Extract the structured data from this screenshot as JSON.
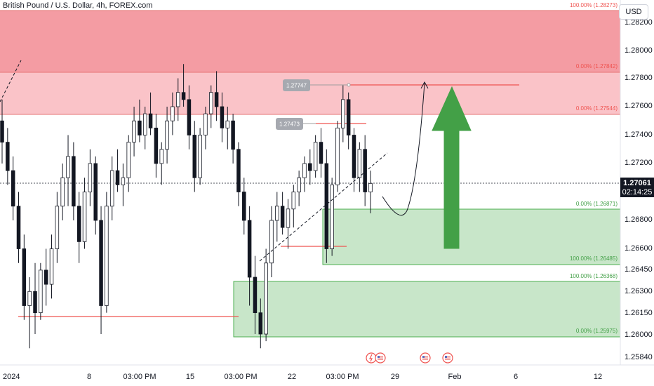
{
  "header": {
    "symbol_title": "British Pound / U.S. Dollar, 4h, FOREX.com",
    "currency": "USD"
  },
  "price_scale": {
    "labels": [
      "1.28200",
      "1.28000",
      "1.27800",
      "1.27600",
      "1.27400",
      "1.27200",
      "1.26800",
      "1.26600",
      "1.26450",
      "1.26300",
      "1.26150",
      "1.26000",
      "1.25840"
    ],
    "current_price": "1.27061",
    "countdown": "02:14:25"
  },
  "time_axis": {
    "labels": [
      "2024",
      "8",
      "03:00 PM",
      "15",
      "03:00 PM",
      "22",
      "03:00 PM",
      "29",
      "Feb",
      "6",
      "12"
    ]
  },
  "zones": {
    "supply_upper": {
      "top_label": "100.00% (1.28273)",
      "bottom_label": "0.00% (1.27842)",
      "top": 1.28273,
      "bottom": 1.27842
    },
    "supply_lower": {
      "bottom_label": "0.00% (1.27544)",
      "bottom": 1.27544
    },
    "demand_upper": {
      "top_label": "0.00% (1.26871)",
      "bottom_label": "100.00% (1.26485)",
      "top": 1.26871,
      "bottom": 1.26485
    },
    "demand_lower": {
      "top_label": "100.00% (1.26368)",
      "bottom_label": "0.00% (1.25975)",
      "top": 1.26368,
      "bottom": 1.25975
    }
  },
  "callouts": {
    "high": "1.27747",
    "mid": "1.27473"
  },
  "colors": {
    "bull": "#ffffff",
    "bear": "#131722",
    "supply_strong": "#f28b93",
    "supply_light": "#f9bcc2",
    "demand": "#c8e6c9",
    "demand_border": "#4caf50",
    "arrow": "#43a047",
    "price_tag": "#131722"
  },
  "icons": [
    "lightning-event-icon",
    "us-flag-event-icon",
    "us-flag-event-icon",
    "us-flag-event-icon"
  ],
  "chart_data": {
    "type": "candlestick",
    "title": "British Pound / U.S. Dollar, 4h, FOREX.com",
    "xlabel": "",
    "ylabel": "",
    "ylim": [
      1.2575,
      1.284
    ],
    "grid": false,
    "candles": [
      [
        1.275,
        1.2765,
        1.272,
        1.2735
      ],
      [
        1.2735,
        1.2745,
        1.2705,
        1.2715
      ],
      [
        1.2715,
        1.2725,
        1.268,
        1.269
      ],
      [
        1.269,
        1.27,
        1.265,
        1.266
      ],
      [
        1.266,
        1.267,
        1.261,
        1.262
      ],
      [
        1.262,
        1.264,
        1.259,
        1.263
      ],
      [
        1.263,
        1.265,
        1.26,
        1.2615
      ],
      [
        1.2615,
        1.265,
        1.261,
        1.2645
      ],
      [
        1.2645,
        1.266,
        1.262,
        1.2635
      ],
      [
        1.2635,
        1.267,
        1.2625,
        1.266
      ],
      [
        1.266,
        1.27,
        1.265,
        1.269
      ],
      [
        1.269,
        1.272,
        1.268,
        1.271
      ],
      [
        1.271,
        1.274,
        1.269,
        1.2725
      ],
      [
        1.2725,
        1.2735,
        1.268,
        1.269
      ],
      [
        1.269,
        1.27,
        1.265,
        1.2665
      ],
      [
        1.2665,
        1.271,
        1.266,
        1.27
      ],
      [
        1.27,
        1.273,
        1.269,
        1.272
      ],
      [
        1.272,
        1.2725,
        1.267,
        1.268
      ],
      [
        1.268,
        1.269,
        1.26,
        1.262
      ],
      [
        1.262,
        1.27,
        1.2615,
        1.269
      ],
      [
        1.269,
        1.2725,
        1.268,
        1.2715
      ],
      [
        1.2715,
        1.273,
        1.27,
        1.2705
      ],
      [
        1.2705,
        1.272,
        1.269,
        1.271
      ],
      [
        1.271,
        1.274,
        1.27,
        1.2735
      ],
      [
        1.2735,
        1.276,
        1.2725,
        1.275
      ],
      [
        1.275,
        1.2765,
        1.2735,
        1.274
      ],
      [
        1.274,
        1.276,
        1.273,
        1.2755
      ],
      [
        1.2755,
        1.277,
        1.274,
        1.2745
      ],
      [
        1.2745,
        1.2755,
        1.271,
        1.272
      ],
      [
        1.272,
        1.2735,
        1.2705,
        1.273
      ],
      [
        1.273,
        1.276,
        1.272,
        1.275
      ],
      [
        1.275,
        1.277,
        1.274,
        1.276
      ],
      [
        1.276,
        1.278,
        1.275,
        1.277
      ],
      [
        1.277,
        1.279,
        1.276,
        1.2765
      ],
      [
        1.2765,
        1.2775,
        1.273,
        1.274
      ],
      [
        1.274,
        1.275,
        1.27,
        1.271
      ],
      [
        1.271,
        1.2745,
        1.2705,
        1.274
      ],
      [
        1.274,
        1.276,
        1.273,
        1.2755
      ],
      [
        1.2755,
        1.2775,
        1.2745,
        1.277
      ],
      [
        1.277,
        1.2785,
        1.275,
        1.276
      ],
      [
        1.276,
        1.277,
        1.2735,
        1.2745
      ],
      [
        1.2745,
        1.276,
        1.273,
        1.275
      ],
      [
        1.275,
        1.2755,
        1.272,
        1.273
      ],
      [
        1.273,
        1.2735,
        1.269,
        1.27
      ],
      [
        1.27,
        1.271,
        1.267,
        1.268
      ],
      [
        1.268,
        1.269,
        1.262,
        1.264
      ],
      [
        1.264,
        1.2655,
        1.26,
        1.2615
      ],
      [
        1.2615,
        1.2625,
        1.259,
        1.26
      ],
      [
        1.26,
        1.266,
        1.2595,
        1.265
      ],
      [
        1.265,
        1.269,
        1.264,
        1.268
      ],
      [
        1.268,
        1.27,
        1.2665,
        1.269
      ],
      [
        1.269,
        1.27,
        1.267,
        1.2675
      ],
      [
        1.2675,
        1.2695,
        1.266,
        1.2688
      ],
      [
        1.2688,
        1.2705,
        1.2675,
        1.27
      ],
      [
        1.27,
        1.2715,
        1.269,
        1.271
      ],
      [
        1.271,
        1.2725,
        1.27,
        1.272
      ],
      [
        1.272,
        1.273,
        1.2705,
        1.2715
      ],
      [
        1.2715,
        1.274,
        1.271,
        1.2735
      ],
      [
        1.2735,
        1.2745,
        1.271,
        1.272
      ],
      [
        1.272,
        1.273,
        1.265,
        1.266
      ],
      [
        1.266,
        1.271,
        1.2655,
        1.2705
      ],
      [
        1.2705,
        1.275,
        1.27,
        1.2745
      ],
      [
        1.2745,
        1.2775,
        1.2735,
        1.2765
      ],
      [
        1.2765,
        1.277,
        1.273,
        1.274
      ],
      [
        1.274,
        1.2745,
        1.27,
        1.271
      ],
      [
        1.271,
        1.2735,
        1.27,
        1.273
      ],
      [
        1.273,
        1.274,
        1.269,
        1.27
      ],
      [
        1.27,
        1.2715,
        1.2685,
        1.2706
      ]
    ],
    "projection_path": "dip to 1.2685 then rally to 1.2775"
  }
}
